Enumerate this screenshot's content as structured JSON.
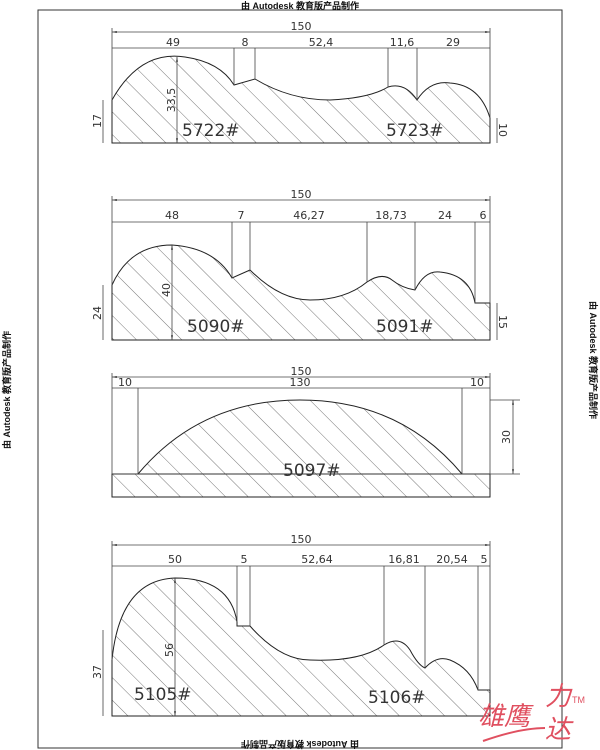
{
  "watermark": "由 Autodesk 教育版产品制作",
  "logo": {
    "text": "雄鹰力达",
    "tm": "TM",
    "color": "#e05060"
  },
  "profiles": [
    {
      "codes": [
        "5722#",
        "5723#"
      ],
      "total": "150",
      "segments": [
        "49",
        "8",
        "52,4",
        "11,6",
        "29"
      ],
      "height": "33,5",
      "left": "17",
      "right": "10"
    },
    {
      "codes": [
        "5090#",
        "5091#"
      ],
      "total": "150",
      "segments": [
        "48",
        "7",
        "46,27",
        "18,73",
        "24",
        "6"
      ],
      "height": "40",
      "left": "24",
      "right": "15"
    },
    {
      "codes": [
        "5097#"
      ],
      "total": "150",
      "segments": [
        "10",
        "130",
        "10"
      ],
      "height": "30"
    },
    {
      "codes": [
        "5105#",
        "5106#"
      ],
      "total": "150",
      "segments": [
        "50",
        "5",
        "52,64",
        "16,81",
        "20,54",
        "5"
      ],
      "height": "56",
      "left": "37"
    }
  ]
}
